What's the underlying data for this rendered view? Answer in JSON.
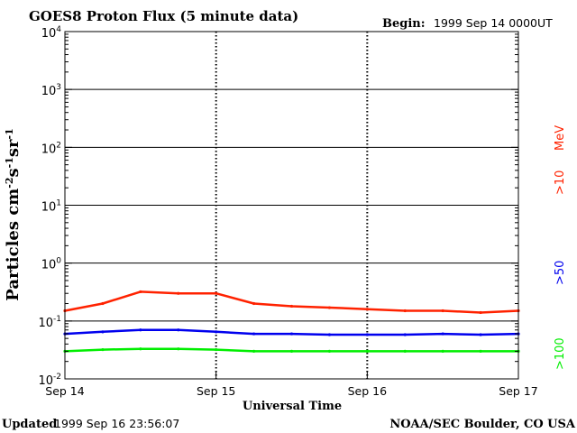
{
  "header": {
    "title": "GOES8 Proton Flux (5 minute data)",
    "begin_label": "Begin:",
    "begin_value": "1999 Sep 14 0000UT"
  },
  "footer": {
    "updated_label": "Updated",
    "updated_value": "1999 Sep 16 23:56:07",
    "credit": "NOAA/SEC Boulder, CO USA"
  },
  "chart_data": {
    "type": "line",
    "title": "GOES8 Proton Flux (5 minute data)",
    "xlabel": "Universal Time",
    "ylabel": "Particles cm⁻²s⁻¹sr⁻¹",
    "y_scale": "log",
    "ylim": [
      0.01,
      10000
    ],
    "y_ticks": [
      {
        "value": 0.01,
        "base": "10",
        "exp": "-2"
      },
      {
        "value": 0.1,
        "base": "10",
        "exp": "-1"
      },
      {
        "value": 1,
        "base": "10",
        "exp": "0"
      },
      {
        "value": 10,
        "base": "10",
        "exp": "1"
      },
      {
        "value": 100,
        "base": "10",
        "exp": "2"
      },
      {
        "value": 1000,
        "base": "10",
        "exp": "3"
      },
      {
        "value": 10000,
        "base": "10",
        "exp": "4"
      }
    ],
    "x_ticks": [
      "Sep 14",
      "Sep 15",
      "Sep 16",
      "Sep 17"
    ],
    "xlim": [
      "1999-09-14",
      "1999-09-17"
    ],
    "grid": true,
    "legend_position": "right",
    "series": [
      {
        "name": ">10 MeV",
        "legend_label": ">10",
        "legend_unit": "MeV",
        "color": "#ff2200",
        "x": [
          "1999-09-14 00:00",
          "1999-09-14 06:00",
          "1999-09-14 12:00",
          "1999-09-14 18:00",
          "1999-09-15 00:00",
          "1999-09-15 06:00",
          "1999-09-15 12:00",
          "1999-09-15 18:00",
          "1999-09-16 00:00",
          "1999-09-16 06:00",
          "1999-09-16 12:00",
          "1999-09-16 18:00",
          "1999-09-17 00:00"
        ],
        "values": [
          0.15,
          0.2,
          0.32,
          0.3,
          0.3,
          0.2,
          0.18,
          0.17,
          0.16,
          0.15,
          0.15,
          0.14,
          0.15
        ]
      },
      {
        "name": ">50",
        "legend_label": ">50",
        "color": "#0000ee",
        "x": [
          "1999-09-14 00:00",
          "1999-09-14 06:00",
          "1999-09-14 12:00",
          "1999-09-14 18:00",
          "1999-09-15 00:00",
          "1999-09-15 06:00",
          "1999-09-15 12:00",
          "1999-09-15 18:00",
          "1999-09-16 00:00",
          "1999-09-16 06:00",
          "1999-09-16 12:00",
          "1999-09-16 18:00",
          "1999-09-17 00:00"
        ],
        "values": [
          0.06,
          0.065,
          0.07,
          0.07,
          0.065,
          0.06,
          0.06,
          0.058,
          0.058,
          0.058,
          0.06,
          0.058,
          0.06
        ]
      },
      {
        "name": ">100",
        "legend_label": ">100",
        "color": "#00ee00",
        "x": [
          "1999-09-14 00:00",
          "1999-09-14 06:00",
          "1999-09-14 12:00",
          "1999-09-14 18:00",
          "1999-09-15 00:00",
          "1999-09-15 06:00",
          "1999-09-15 12:00",
          "1999-09-15 18:00",
          "1999-09-16 00:00",
          "1999-09-16 06:00",
          "1999-09-16 12:00",
          "1999-09-16 18:00",
          "1999-09-17 00:00"
        ],
        "values": [
          0.03,
          0.032,
          0.033,
          0.033,
          0.032,
          0.03,
          0.03,
          0.03,
          0.03,
          0.03,
          0.03,
          0.03,
          0.03
        ]
      }
    ]
  }
}
